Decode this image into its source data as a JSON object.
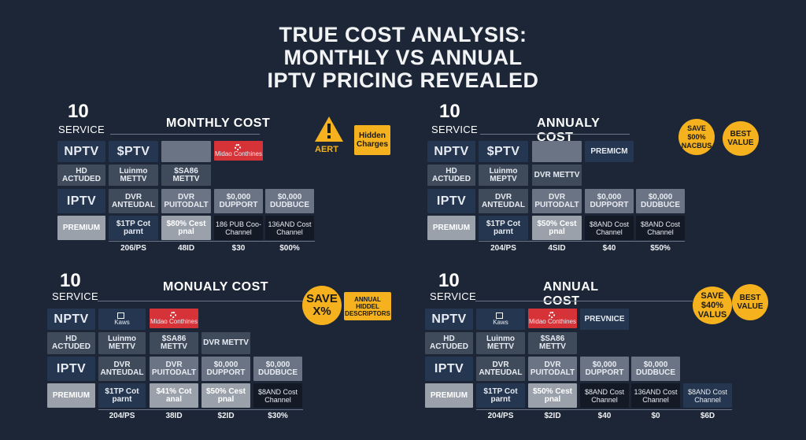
{
  "title": {
    "line1": "TRUE COST ANALYSIS:",
    "line2": "MONTHLY VS ANNUAL",
    "line3": "IPTV PRICING REVEALED"
  },
  "q1": {
    "num": "10",
    "service": "SERVICE",
    "heading": "MONTHLY COST",
    "r1": {
      "a": "NPTV",
      "b": "$PTV",
      "d": "Midao Conthines"
    },
    "r2": {
      "a": "HD ACTUDED",
      "b": "Luinmo METTV",
      "c": "$SA86 METTV"
    },
    "r3": {
      "a": "IPTV",
      "b": "DVR ANTEUDAL",
      "c": "DVR PUITODALT",
      "d": "$0,000 DUPPORT",
      "e": "$0,000 DUDBUCE"
    },
    "r4": {
      "a": "PREMIUM",
      "b": "$1TP Cot parnt",
      "c": "$80% Cest pnal",
      "d": "186 PUB Coo-Channel",
      "e": "136AND Cost Channel"
    },
    "foot": {
      "a": "206/PS",
      "b": "48ID",
      "c": "$30",
      "d": "$00%"
    },
    "alert_label": "AERT",
    "tag": "Hidden Charges"
  },
  "q2": {
    "num": "10",
    "service": "SERVICE",
    "heading": "ANNUALY COST",
    "r1": {
      "a": "NPTV",
      "b": "$PTV",
      "d": "PREMICM"
    },
    "r2": {
      "a": "HD ACTUDED",
      "b": "Luinmo MEPTV",
      "c": "DVR METTV"
    },
    "r3": {
      "a": "IPTV",
      "b": "DVR ANTEUDAL",
      "c": "DVR PUITODALT",
      "d": "$0,000 DUPPORT",
      "e": "$0,000 DUDBUCE"
    },
    "r4": {
      "a": "PREMIUM",
      "b": "$1TP Cot parnt",
      "c": "$50% Cest pnal",
      "d": "$8AND Cost Channel",
      "e": "$8AND Cost Channel"
    },
    "foot": {
      "a": "204/PS",
      "b": "4SID",
      "c": "$40",
      "d": "$50%"
    },
    "badge1": "SAVE $00% NACBUS",
    "badge2": "BEST VALUE"
  },
  "q3": {
    "num": "10",
    "service": "SERVICE",
    "heading": "MONUALY COST",
    "r1": {
      "a": "NPTV",
      "b": "Kaws",
      "c": "Midao Conthines"
    },
    "r2": {
      "a": "HD ACTUDED",
      "b": "Luinmo METTV",
      "c": "$SA86 METTV",
      "d": "DVR METTV"
    },
    "r3": {
      "a": "IPTV",
      "b": "DVR ANTEUDAL",
      "c": "DVR PUITODALT",
      "d": "$0,000 DUPPORT",
      "e": "$0,000 DUDBUCE"
    },
    "r4": {
      "a": "PREMIUM",
      "b": "$1TP Cot parnt",
      "c": "$41% Cot anal",
      "d": "$50% Cest pnal",
      "e": "$8AND Cost Channel"
    },
    "foot": {
      "a": "204/PS",
      "b": "38ID",
      "c": "$2ID",
      "d": "$30%"
    },
    "badge1": "SAVE X%",
    "tag": "ANNUAL HIDDEL DESCRIPTORS"
  },
  "q4": {
    "num": "10",
    "service": "SERVICE",
    "heading": "ANNUAL COST",
    "r1": {
      "a": "NPTV",
      "b": "Kaws",
      "c": "Midao Conthines",
      "d": "PREVNICE"
    },
    "r2": {
      "a": "HD ACTUDED",
      "b": "Luinmo METTV",
      "c": "$SA86 METTV"
    },
    "r3": {
      "a": "IPTV",
      "b": "DVR ANTEUDAL",
      "c": "DVR PUITODALT",
      "d": "$0,000 DUPPORT",
      "e": "$0,000 DUDBUCE"
    },
    "r4": {
      "a": "PREMIUM",
      "b": "$1TP Cot parnt",
      "c": "$50% Cest pnal",
      "d": "$8AND Cost Channel",
      "e": "136AND Cost Channel",
      "f": "$8AND Cost Channel"
    },
    "foot": {
      "a": "204/PS",
      "b": "$2ID",
      "c": "$40",
      "d": "$0",
      "e": "$6D"
    },
    "badge1": "SAVE $40% VALUS",
    "badge2": "BEST VALUE"
  },
  "colors": {
    "background": "#1c2636",
    "accent": "#f5b21e",
    "alert_red": "#d63339"
  }
}
